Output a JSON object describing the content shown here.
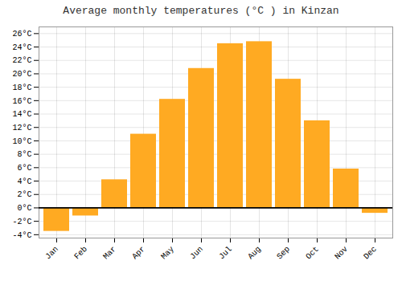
{
  "chart_data": {
    "type": "bar",
    "title": "Average monthly temperatures (°C ) in Kinzan",
    "categories": [
      "Jan",
      "Feb",
      "Mar",
      "Apr",
      "May",
      "Jun",
      "Jul",
      "Aug",
      "Sep",
      "Oct",
      "Nov",
      "Dec"
    ],
    "values": [
      -3.5,
      -1.2,
      4.2,
      11.0,
      16.2,
      20.8,
      24.5,
      24.8,
      19.2,
      13.0,
      5.8,
      -0.8
    ],
    "color": "#FFAA22",
    "ylim": [
      -4.5,
      27
    ],
    "yticks": [
      {
        "value": -4,
        "label": "-4°C"
      },
      {
        "value": -2,
        "label": "-2°C"
      },
      {
        "value": 0,
        "label": "0°C"
      },
      {
        "value": 2,
        "label": "2°C"
      },
      {
        "value": 4,
        "label": "4°C"
      },
      {
        "value": 6,
        "label": "6°C"
      },
      {
        "value": 8,
        "label": "8°C"
      },
      {
        "value": 10,
        "label": "10°C"
      },
      {
        "value": 12,
        "label": "12°C"
      },
      {
        "value": 14,
        "label": "14°C"
      },
      {
        "value": 16,
        "label": "16°C"
      },
      {
        "value": 18,
        "label": "18°C"
      },
      {
        "value": 20,
        "label": "20°C"
      },
      {
        "value": 22,
        "label": "22°C"
      },
      {
        "value": 24,
        "label": "24°C"
      },
      {
        "value": 26,
        "label": "26°C"
      }
    ],
    "grid": true
  }
}
